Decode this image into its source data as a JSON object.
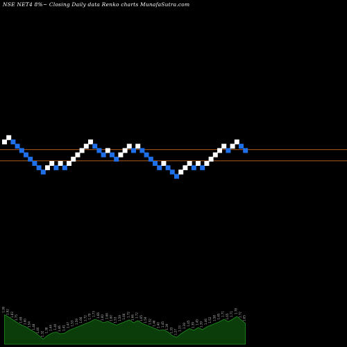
{
  "header": {
    "text": "NSE NET4  8%~  Closing Daily data  Renko  charts MunafaSutra.com"
  },
  "colors": {
    "background": "#000000",
    "up_brick": "#ffffff",
    "down_brick": "#1e6fe8",
    "reference_line": "#b05a1e",
    "volume_fill": "#0a3d0a",
    "volume_outline": "#1f8f1f",
    "volume_label": "#b8b8b8"
  },
  "chart_data": {
    "type": "renko",
    "title": "NSE NET4 8%~ Closing Daily data Renko charts MunafaSutra.com",
    "bricks": [
      {
        "level": 0,
        "dir": "up"
      },
      {
        "level": 1,
        "dir": "up"
      },
      {
        "level": 0,
        "dir": "down"
      },
      {
        "level": -1,
        "dir": "down"
      },
      {
        "level": -2,
        "dir": "down"
      },
      {
        "level": -3,
        "dir": "down"
      },
      {
        "level": -4,
        "dir": "down"
      },
      {
        "level": -5,
        "dir": "down"
      },
      {
        "level": -6,
        "dir": "down"
      },
      {
        "level": -7,
        "dir": "down"
      },
      {
        "level": -6,
        "dir": "up"
      },
      {
        "level": -5,
        "dir": "up"
      },
      {
        "level": -6,
        "dir": "down"
      },
      {
        "level": -5,
        "dir": "up"
      },
      {
        "level": -6,
        "dir": "down"
      },
      {
        "level": -5,
        "dir": "up"
      },
      {
        "level": -4,
        "dir": "up"
      },
      {
        "level": -3,
        "dir": "up"
      },
      {
        "level": -2,
        "dir": "up"
      },
      {
        "level": -1,
        "dir": "up"
      },
      {
        "level": 0,
        "dir": "up"
      },
      {
        "level": -1,
        "dir": "down"
      },
      {
        "level": -2,
        "dir": "down"
      },
      {
        "level": -3,
        "dir": "down"
      },
      {
        "level": -2,
        "dir": "up"
      },
      {
        "level": -3,
        "dir": "down"
      },
      {
        "level": -4,
        "dir": "down"
      },
      {
        "level": -3,
        "dir": "up"
      },
      {
        "level": -2,
        "dir": "up"
      },
      {
        "level": -1,
        "dir": "up"
      },
      {
        "level": -2,
        "dir": "down"
      },
      {
        "level": -1,
        "dir": "up"
      },
      {
        "level": -2,
        "dir": "down"
      },
      {
        "level": -3,
        "dir": "down"
      },
      {
        "level": -4,
        "dir": "down"
      },
      {
        "level": -5,
        "dir": "down"
      },
      {
        "level": -6,
        "dir": "down"
      },
      {
        "level": -5,
        "dir": "up"
      },
      {
        "level": -6,
        "dir": "down"
      },
      {
        "level": -7,
        "dir": "down"
      },
      {
        "level": -8,
        "dir": "down"
      },
      {
        "level": -7,
        "dir": "up"
      },
      {
        "level": -6,
        "dir": "up"
      },
      {
        "level": -5,
        "dir": "up"
      },
      {
        "level": -6,
        "dir": "down"
      },
      {
        "level": -5,
        "dir": "up"
      },
      {
        "level": -6,
        "dir": "down"
      },
      {
        "level": -5,
        "dir": "up"
      },
      {
        "level": -4,
        "dir": "up"
      },
      {
        "level": -3,
        "dir": "up"
      },
      {
        "level": -2,
        "dir": "up"
      },
      {
        "level": -1,
        "dir": "up"
      },
      {
        "level": -2,
        "dir": "down"
      },
      {
        "level": -1,
        "dir": "up"
      },
      {
        "level": 0,
        "dir": "up"
      },
      {
        "level": -1,
        "dir": "down"
      },
      {
        "level": -2,
        "dir": "down"
      }
    ],
    "reference_lines": [
      -1.8,
      -4.4
    ],
    "volume": [
      0.85,
      0.78,
      0.7,
      0.62,
      0.55,
      0.5,
      0.42,
      0.35,
      0.25,
      0.15,
      0.25,
      0.32,
      0.35,
      0.3,
      0.32,
      0.4,
      0.45,
      0.5,
      0.55,
      0.6,
      0.65,
      0.72,
      0.68,
      0.62,
      0.66,
      0.6,
      0.55,
      0.6,
      0.65,
      0.7,
      0.62,
      0.68,
      0.6,
      0.55,
      0.5,
      0.45,
      0.4,
      0.42,
      0.35,
      0.25,
      0.2,
      0.3,
      0.38,
      0.45,
      0.4,
      0.48,
      0.42,
      0.5,
      0.55,
      0.6,
      0.65,
      0.72,
      0.65,
      0.72,
      0.8,
      0.7,
      0.6
    ],
    "volume_labels": [
      "1.90",
      "1.92",
      "1.83",
      "1.75",
      "1.69",
      "1.60",
      "1.54",
      "1.48",
      "1.40",
      "1.32",
      "1.38",
      "1.44",
      "1.40",
      "1.46",
      "1.41",
      "1.47",
      "1.53",
      "1.59",
      "1.66",
      "1.72",
      "1.79",
      "1.73",
      "1.66",
      "1.60",
      "1.66",
      "1.60",
      "1.53",
      "1.59",
      "1.66",
      "1.72",
      "1.66",
      "1.72",
      "1.65",
      "1.59",
      "1.52",
      "1.46",
      "1.40",
      "1.45",
      "1.39",
      "1.33",
      "1.27",
      "1.33",
      "1.39",
      "1.45",
      "1.39",
      "1.45",
      "1.39",
      "1.46",
      "1.52",
      "1.58",
      "1.65",
      "1.71",
      "1.65",
      "1.71",
      "1.78",
      "1.72",
      "1.65"
    ]
  }
}
